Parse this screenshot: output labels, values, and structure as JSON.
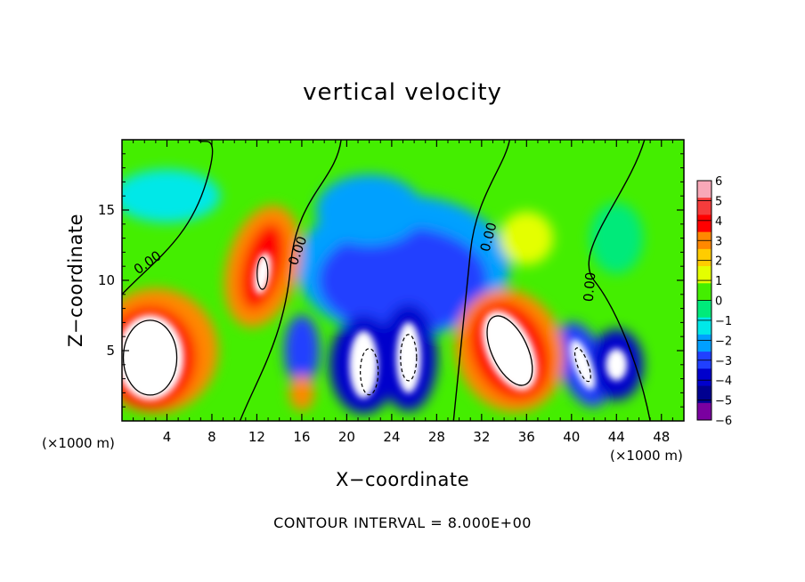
{
  "chart_data": {
    "type": "heatmap",
    "title": "vertical velocity",
    "xlabel": "X−coordinate",
    "ylabel": "Z−coordinate",
    "x_unit": "(×1000 m)",
    "x_unit_right": "(×1000 m)",
    "xlim": [
      0,
      50
    ],
    "ylim": [
      0,
      20
    ],
    "x_ticks": [
      "4",
      "8",
      "12",
      "16",
      "20",
      "24",
      "28",
      "32",
      "36",
      "40",
      "44",
      "48"
    ],
    "x_tick_values": [
      4,
      8,
      12,
      16,
      20,
      24,
      28,
      32,
      36,
      40,
      44,
      48
    ],
    "y_ticks": [
      "5",
      "10",
      "15"
    ],
    "y_tick_values": [
      5,
      10,
      15
    ],
    "colorbar": {
      "min": -6,
      "max": 6,
      "labels": [
        "6",
        "5",
        "4",
        "3",
        "2",
        "1",
        "0",
        "−1",
        "−2",
        "−3",
        "−4",
        "−5",
        "−6"
      ],
      "values": [
        6,
        5,
        4,
        3,
        2,
        1,
        0,
        -1,
        -2,
        -3,
        -4,
        -5,
        -6
      ],
      "colors": [
        "#f8a8b8",
        "#f53c3c",
        "#ff0000",
        "#ff8800",
        "#ffcc00",
        "#e4ff00",
        "#44ee00",
        "#00ea7a",
        "#00e8e8",
        "#00a0ff",
        "#2040ff",
        "#0000cc",
        "#000090",
        "#7a00a0"
      ]
    },
    "contour_labels": [
      "0.00",
      "0.00",
      "0.00",
      "0.00"
    ],
    "contour_interval_text": "CONTOUR INTERVAL = 8.000E+00",
    "features": [
      {
        "sign": "up",
        "x": 2.5,
        "z": 4.0,
        "peak": 9,
        "note": "updraft core with contour"
      },
      {
        "sign": "up",
        "x": 12.5,
        "z": 10.5,
        "peak": 7,
        "note": "upper updraft"
      },
      {
        "sign": "up",
        "x": 34.5,
        "z": 5.0,
        "peak": 10,
        "note": "updraft core with contour"
      },
      {
        "sign": "down",
        "x": 21.5,
        "z": 4.0,
        "peak": -8,
        "note": "downdraft core"
      },
      {
        "sign": "down",
        "x": 25.5,
        "z": 4.5,
        "peak": -8,
        "note": "downdraft core"
      },
      {
        "sign": "down",
        "x": 41.0,
        "z": 4.0,
        "peak": -7,
        "note": "downdraft core"
      },
      {
        "sign": "down",
        "x": 44.0,
        "z": 4.0,
        "peak": -6,
        "note": "downdraft core"
      }
    ]
  }
}
